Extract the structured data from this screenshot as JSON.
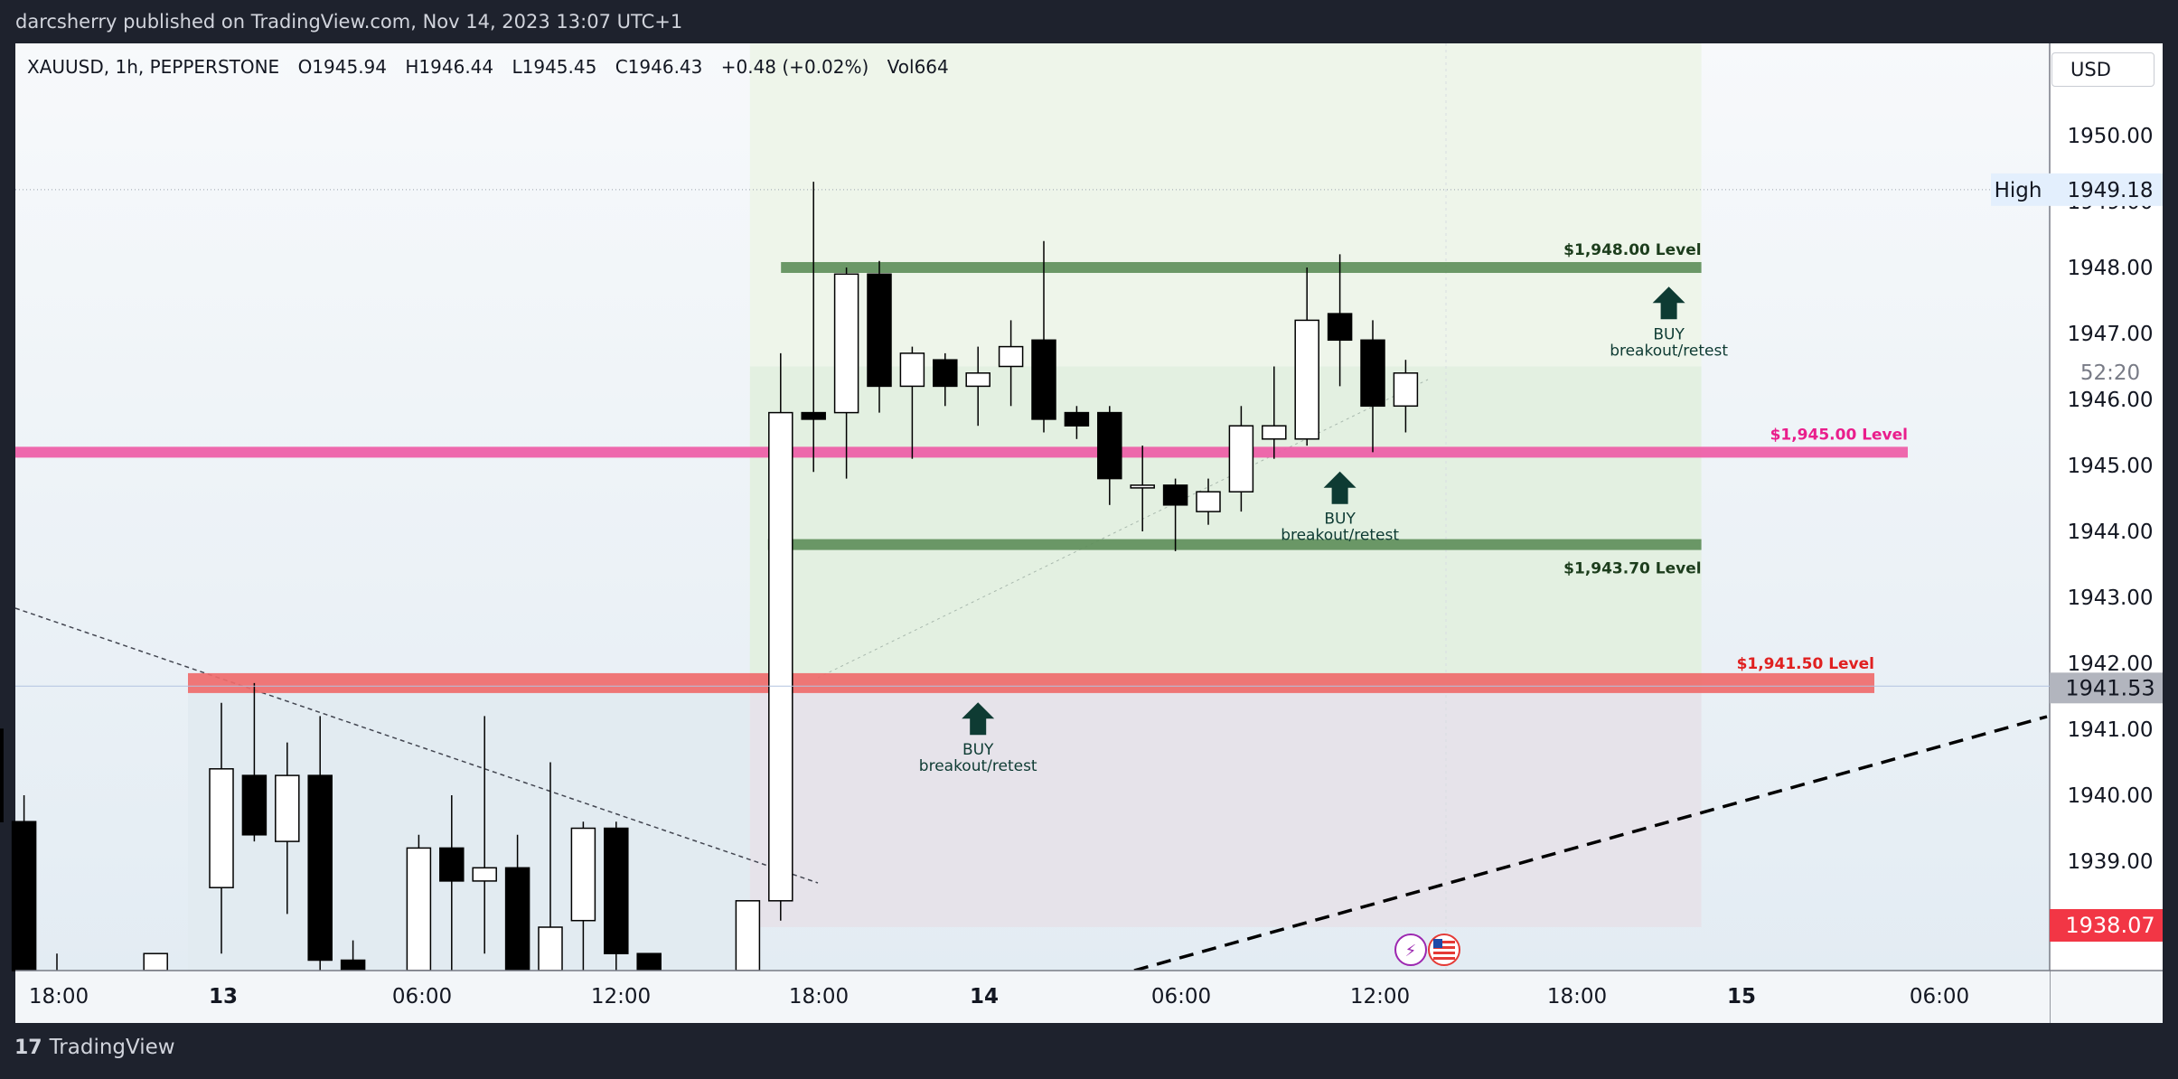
{
  "header": {
    "publisher": "darcsherry published on TradingView.com, Nov 14, 2023 13:07 UTC+1"
  },
  "legend": {
    "symbol": "XAUUSD, 1h, PEPPERSTONE",
    "open": "O1945.94",
    "high": "H1946.44",
    "low": "L1945.45",
    "close": "C1946.43",
    "change": "+0.48 (+0.02%)",
    "volume": "Vol664"
  },
  "currency": "USD",
  "footer": {
    "brand": "TradingView"
  },
  "price_axis": {
    "ticks": [
      "1950.00",
      "1949.00",
      "1948.00",
      "1947.00",
      "1946.00",
      "1945.00",
      "1944.00",
      "1943.00",
      "1942.00",
      "1941.00",
      "1940.00",
      "1939.00"
    ],
    "high_label": "High",
    "high_value": "1949.18",
    "countdown": "52:20",
    "current_price": "1941.53",
    "last_price": "1938.07"
  },
  "time_axis": [
    "18:00",
    "13",
    "06:00",
    "12:00",
    "18:00",
    "14",
    "06:00",
    "12:00",
    "18:00",
    "15",
    "06:00"
  ],
  "colors": {
    "up_body": "#ffffff",
    "down_body": "#000000",
    "level_green": "#5f8f5b",
    "level_pink": "#ee5ca6",
    "level_red": "#ef6b6b",
    "label_pink": "#e91e8c",
    "label_red": "#e02020",
    "last_price_bg": "#f23645",
    "current_price_bg": "#b2b5be"
  },
  "chart_data": {
    "type": "candlestick",
    "symbol": "XAUUSD",
    "interval": "1h",
    "broker": "PEPPERSTONE",
    "ylim": [
      1937.0,
      1951.0
    ],
    "x_range": [
      "Nov 12 17:00",
      "Nov 15 07:00"
    ],
    "candles": [
      {
        "t": "11-12 17:00",
        "o": 1941.0,
        "h": 1943.5,
        "l": 1937.2,
        "c": 1939.6
      },
      {
        "t": "11-12 18:00",
        "o": 1939.6,
        "h": 1940.0,
        "l": 1937.2,
        "c": 1937.2
      },
      {
        "t": "11-12 19:00",
        "o": 1937.3,
        "h": 1937.6,
        "l": 1937.2,
        "c": 1937.2
      },
      {
        "t": "11-12 22:00",
        "o": 1937.2,
        "h": 1937.6,
        "l": 1937.2,
        "c": 1937.6
      },
      {
        "t": "11-13 00:00",
        "o": 1938.6,
        "h": 1941.4,
        "l": 1937.6,
        "c": 1940.4
      },
      {
        "t": "11-13 01:00",
        "o": 1940.3,
        "h": 1941.7,
        "l": 1939.3,
        "c": 1939.4
      },
      {
        "t": "11-13 02:00",
        "o": 1939.3,
        "h": 1940.8,
        "l": 1938.2,
        "c": 1940.3
      },
      {
        "t": "11-13 03:00",
        "o": 1940.3,
        "h": 1941.2,
        "l": 1937.2,
        "c": 1937.5
      },
      {
        "t": "11-13 04:00",
        "o": 1937.5,
        "h": 1937.8,
        "l": 1937.2,
        "c": 1937.2
      },
      {
        "t": "11-13 06:00",
        "o": 1937.2,
        "h": 1939.4,
        "l": 1937.2,
        "c": 1939.2
      },
      {
        "t": "11-13 07:00",
        "o": 1939.2,
        "h": 1940.0,
        "l": 1937.2,
        "c": 1938.7
      },
      {
        "t": "11-13 08:00",
        "o": 1938.7,
        "h": 1941.2,
        "l": 1937.6,
        "c": 1938.9
      },
      {
        "t": "11-13 09:00",
        "o": 1938.9,
        "h": 1939.4,
        "l": 1937.2,
        "c": 1937.2
      },
      {
        "t": "11-13 10:00",
        "o": 1937.2,
        "h": 1940.5,
        "l": 1937.2,
        "c": 1938.0
      },
      {
        "t": "11-13 11:00",
        "o": 1938.1,
        "h": 1939.6,
        "l": 1937.2,
        "c": 1939.5
      },
      {
        "t": "11-13 12:00",
        "o": 1939.5,
        "h": 1939.6,
        "l": 1937.2,
        "c": 1937.6
      },
      {
        "t": "11-13 13:00",
        "o": 1937.6,
        "h": 1937.6,
        "l": 1937.2,
        "c": 1937.2
      },
      {
        "t": "11-13 16:00",
        "o": 1937.2,
        "h": 1938.4,
        "l": 1937.2,
        "c": 1938.4
      },
      {
        "t": "11-13 17:00",
        "o": 1938.4,
        "h": 1946.7,
        "l": 1938.1,
        "c": 1945.8
      },
      {
        "t": "11-13 18:00",
        "o": 1945.8,
        "h": 1949.3,
        "l": 1944.9,
        "c": 1945.7
      },
      {
        "t": "11-13 19:00",
        "o": 1945.8,
        "h": 1948.0,
        "l": 1944.8,
        "c": 1947.9
      },
      {
        "t": "11-13 20:00",
        "o": 1947.9,
        "h": 1948.1,
        "l": 1945.8,
        "c": 1946.2
      },
      {
        "t": "11-13 21:00",
        "o": 1946.2,
        "h": 1946.8,
        "l": 1945.1,
        "c": 1946.7
      },
      {
        "t": "11-13 22:00",
        "o": 1946.6,
        "h": 1946.7,
        "l": 1945.9,
        "c": 1946.2
      },
      {
        "t": "11-13 23:00",
        "o": 1946.2,
        "h": 1946.8,
        "l": 1945.6,
        "c": 1946.4
      },
      {
        "t": "11-14 00:00",
        "o": 1946.5,
        "h": 1947.2,
        "l": 1945.9,
        "c": 1946.8
      },
      {
        "t": "11-14 01:00",
        "o": 1946.9,
        "h": 1948.4,
        "l": 1945.5,
        "c": 1945.7
      },
      {
        "t": "11-14 02:00",
        "o": 1945.8,
        "h": 1945.9,
        "l": 1945.4,
        "c": 1945.6
      },
      {
        "t": "11-14 03:00",
        "o": 1945.8,
        "h": 1945.9,
        "l": 1944.4,
        "c": 1944.8
      },
      {
        "t": "11-14 04:00",
        "o": 1944.7,
        "h": 1945.3,
        "l": 1944.0,
        "c": 1944.7
      },
      {
        "t": "11-14 05:00",
        "o": 1944.7,
        "h": 1944.8,
        "l": 1943.7,
        "c": 1944.4
      },
      {
        "t": "11-14 06:00",
        "o": 1944.3,
        "h": 1944.8,
        "l": 1944.1,
        "c": 1944.6
      },
      {
        "t": "11-14 07:00",
        "o": 1944.6,
        "h": 1945.9,
        "l": 1944.3,
        "c": 1945.6
      },
      {
        "t": "11-14 08:00",
        "o": 1945.4,
        "h": 1946.5,
        "l": 1945.1,
        "c": 1945.6
      },
      {
        "t": "11-14 09:00",
        "o": 1945.4,
        "h": 1948.0,
        "l": 1945.3,
        "c": 1947.2
      },
      {
        "t": "11-14 10:00",
        "o": 1947.3,
        "h": 1948.2,
        "l": 1946.2,
        "c": 1946.9
      },
      {
        "t": "11-14 11:00",
        "o": 1946.9,
        "h": 1947.2,
        "l": 1945.2,
        "c": 1945.9
      },
      {
        "t": "11-14 12:00",
        "o": 1945.9,
        "h": 1946.6,
        "l": 1945.5,
        "c": 1946.4
      }
    ],
    "levels": [
      {
        "price": 1948.0,
        "label": "$1,948.00 Level",
        "color": "green"
      },
      {
        "price": 1945.2,
        "label": "$1,945.00 Level",
        "color": "pink"
      },
      {
        "price": 1943.8,
        "label": "$1,943.70 Level",
        "color": "green"
      },
      {
        "price": 1941.7,
        "label": "$1,941.50 Level",
        "color": "red"
      }
    ],
    "annotations": [
      {
        "line1": "BUY",
        "line2": "breakout/retest",
        "time": "11-13 23:00",
        "price": 1941.6,
        "placement": "below the $1,941.50 level"
      },
      {
        "line1": "BUY",
        "line2": "breakout/retest",
        "time": "11-14 10:00",
        "price": 1945.1,
        "placement": "below the $1,945.00 level"
      },
      {
        "line1": "BUY",
        "line2": "breakout/retest",
        "time": "11-14 20:00",
        "price": 1947.9,
        "placement": "below the $1,948.00 level"
      }
    ],
    "high_marker": 1949.18,
    "grid": false
  }
}
